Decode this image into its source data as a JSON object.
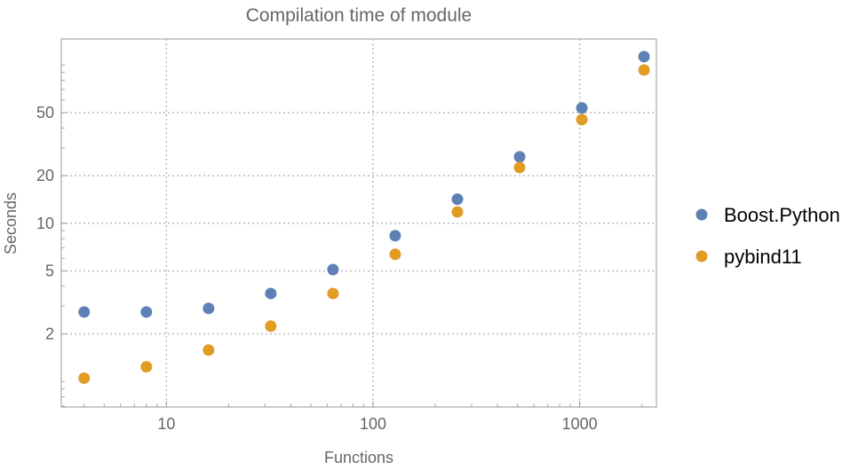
{
  "chart_data": {
    "type": "scatter",
    "title": "Compilation time of module",
    "xlabel": "Functions",
    "ylabel": "Seconds",
    "x_scale": "log",
    "y_scale": "log",
    "xlim": [
      3.1,
      2350
    ],
    "ylim": [
      0.69,
      146
    ],
    "x_ticks": [
      10,
      100,
      1000
    ],
    "x_tick_labels": [
      "10",
      "100",
      "1000"
    ],
    "y_ticks": [
      2,
      5,
      10,
      20,
      50
    ],
    "y_tick_labels": [
      "2",
      "5",
      "10",
      "20",
      "50"
    ],
    "grid": true,
    "legend_position": "right",
    "x": [
      4,
      8,
      16,
      32,
      64,
      128,
      256,
      512,
      1024,
      2048
    ],
    "series": [
      {
        "name": "Boost.Python",
        "color": "#5e81b5",
        "values": [
          2.75,
          2.75,
          2.9,
          3.6,
          5.1,
          8.35,
          14.2,
          26.3,
          53.5,
          113
        ]
      },
      {
        "name": "pybind11",
        "color": "#e19c24",
        "values": [
          1.05,
          1.24,
          1.58,
          2.24,
          3.6,
          6.37,
          11.8,
          22.5,
          45.2,
          93
        ]
      }
    ]
  }
}
